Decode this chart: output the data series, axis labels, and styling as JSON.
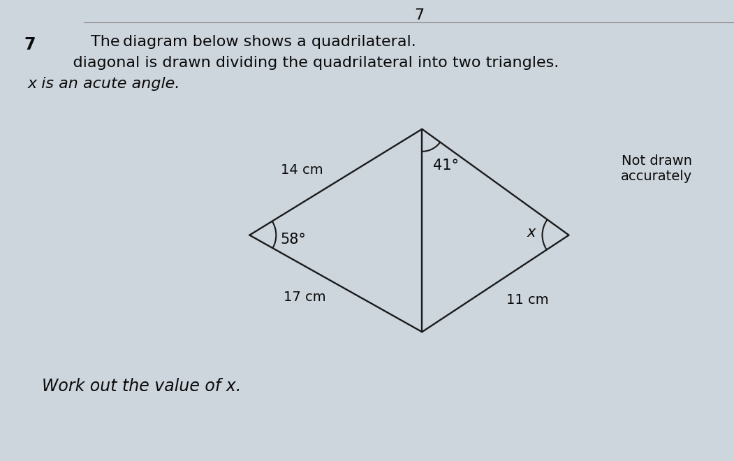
{
  "bg_color": "#b8bfc8",
  "paper_color": "#dde3ea",
  "line_color": "#1a1a1a",
  "text_color": "#0a0a0a",
  "question_number": "7",
  "line1": "The diagram below shows a quadrilateral.",
  "line2": " diagonal is drawn dividing the quadrilateral into two triangles.",
  "line3": "x is an acute angle.",
  "not_drawn": "Not drawn",
  "accurately": "accurately",
  "work_out": "Work out the value of x.",
  "angle_left": "58°",
  "angle_top": "41°",
  "angle_right": "x",
  "side_top_left": "14 cm",
  "side_bottom_left": "17 cm",
  "side_bottom_right": "11 cm",
  "header_7": "7",
  "L": [
    0.34,
    0.49
  ],
  "T": [
    0.575,
    0.72
  ],
  "R": [
    0.775,
    0.49
  ],
  "B": [
    0.575,
    0.28
  ]
}
